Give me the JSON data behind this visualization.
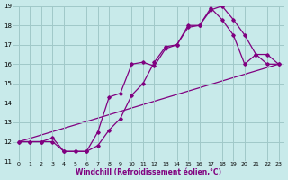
{
  "xlabel": "Windchill (Refroidissement éolien,°C)",
  "bg_color": "#c8eaea",
  "grid_color": "#a0c8c8",
  "line_color": "#800080",
  "xlim": [
    -0.5,
    23.5
  ],
  "ylim": [
    11,
    19
  ],
  "yticks": [
    11,
    12,
    13,
    14,
    15,
    16,
    17,
    18,
    19
  ],
  "xticks": [
    0,
    1,
    2,
    3,
    4,
    5,
    6,
    7,
    8,
    9,
    10,
    11,
    12,
    13,
    14,
    15,
    16,
    17,
    18,
    19,
    20,
    21,
    22,
    23
  ],
  "line1_x": [
    0,
    1,
    2,
    3,
    4,
    5,
    6,
    7,
    8,
    9,
    10,
    11,
    12,
    13,
    14,
    15,
    16,
    17,
    18,
    19,
    20,
    21,
    22,
    23
  ],
  "line1_y": [
    12,
    12,
    12,
    12.2,
    11.5,
    11.5,
    11.5,
    12.5,
    14.3,
    14.5,
    16.0,
    16.1,
    15.9,
    16.8,
    17.0,
    17.9,
    18.0,
    18.8,
    19.0,
    18.3,
    17.5,
    16.5,
    16.0,
    16.0
  ],
  "line2_x": [
    0,
    1,
    2,
    3,
    4,
    5,
    6,
    7,
    8,
    9,
    10,
    11,
    12,
    13,
    14,
    15,
    16,
    17,
    18,
    19,
    20,
    21,
    22,
    23
  ],
  "line2_y": [
    12,
    12,
    12,
    12.0,
    11.5,
    11.5,
    11.5,
    11.8,
    12.6,
    13.2,
    14.4,
    15.0,
    16.1,
    16.9,
    17.0,
    18.0,
    18.0,
    18.9,
    18.3,
    17.5,
    16.0,
    16.5,
    16.5,
    16.0
  ],
  "line3_x": [
    0,
    23
  ],
  "line3_y": [
    12,
    16
  ]
}
